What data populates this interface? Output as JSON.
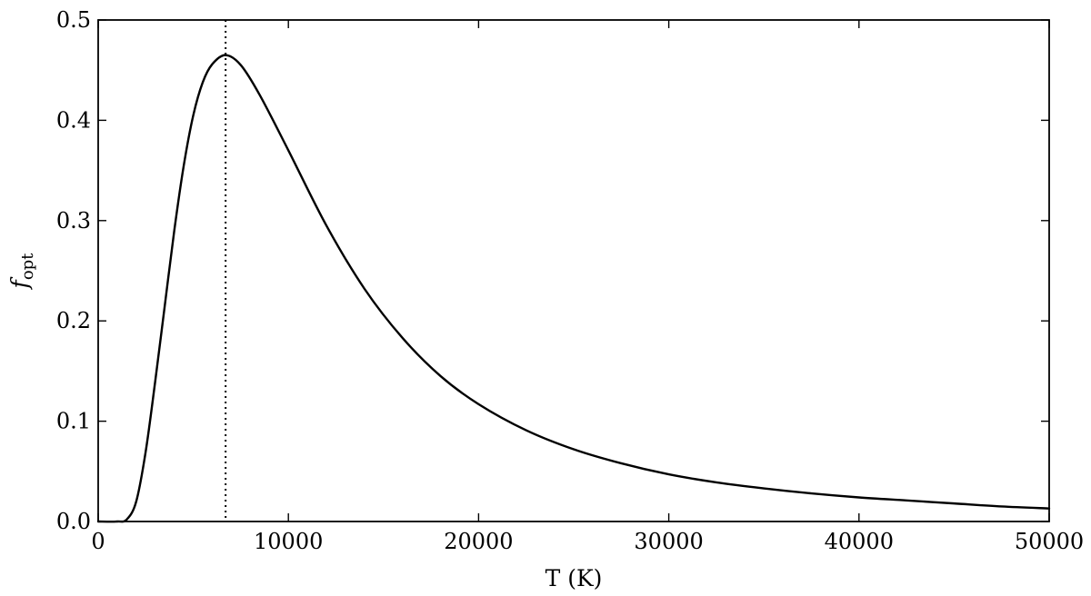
{
  "chart_data": {
    "type": "line",
    "xlabel": "T (K)",
    "ylabel": "f",
    "ylabel_subscript": "opt",
    "xlim": [
      0,
      50000
    ],
    "ylim": [
      0,
      0.5
    ],
    "x_ticks": [
      0,
      10000,
      20000,
      30000,
      40000,
      50000
    ],
    "x_tick_labels": [
      "0",
      "10000",
      "20000",
      "30000",
      "40000",
      "50000"
    ],
    "y_ticks": [
      0.0,
      0.1,
      0.2,
      0.3,
      0.4,
      0.5
    ],
    "y_tick_labels": [
      "0.0",
      "0.1",
      "0.2",
      "0.3",
      "0.4",
      "0.5"
    ],
    "grid": false,
    "series": [
      {
        "style": "solid",
        "color": "#000000",
        "x": [
          0,
          1000,
          1500,
          2000,
          2500,
          3000,
          3500,
          4000,
          4500,
          5000,
          5500,
          6000,
          6700,
          7500,
          8500,
          10000,
          12000,
          14000,
          16000,
          18000,
          20000,
          22500,
          25000,
          27500,
          30000,
          32500,
          35000,
          37500,
          40000,
          42500,
          45000,
          47500,
          50000
        ],
        "y": [
          0.0,
          0.0,
          0.002,
          0.02,
          0.07,
          0.14,
          0.215,
          0.29,
          0.355,
          0.405,
          0.438,
          0.456,
          0.465,
          0.455,
          0.425,
          0.37,
          0.295,
          0.232,
          0.183,
          0.145,
          0.117,
          0.091,
          0.072,
          0.058,
          0.047,
          0.039,
          0.033,
          0.028,
          0.024,
          0.021,
          0.018,
          0.015,
          0.013
        ]
      }
    ],
    "vlines": [
      {
        "x": 6700,
        "style": "dotted",
        "color": "#000000"
      }
    ]
  }
}
